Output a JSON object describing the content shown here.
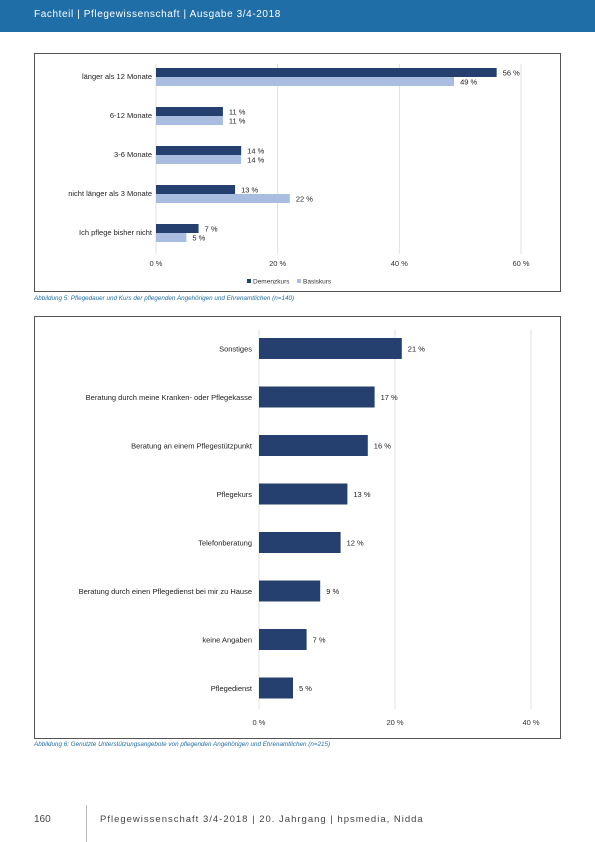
{
  "header": {
    "text": "Fachteil | Pflegewissenschaft | Ausgabe 3/4-2018"
  },
  "figure5": {
    "caption": "Abbildung 5: Pflegedauer und Kurs der pflegenden Angehörigen und Ehrenamtlichen (n=140)",
    "chart_data": {
      "type": "bar",
      "orientation": "horizontal",
      "categories": [
        "länger als 12 Monate",
        "6-12 Monate",
        "3-6 Monate",
        "nicht länger als 3 Monate",
        "Ich pflege bisher nicht"
      ],
      "series": [
        {
          "name": "Demenzkurs",
          "values": [
            56,
            11,
            14,
            13,
            7
          ],
          "labels": [
            "56 %",
            "11 %",
            "14 %",
            "13 %",
            "7 %"
          ],
          "color": "#25406e"
        },
        {
          "name": "Basiskurs",
          "values": [
            49,
            11,
            14,
            22,
            5
          ],
          "labels": [
            "49 %",
            "11 %",
            "14 %",
            "22 %",
            "5 %"
          ],
          "color": "#a9bde0"
        }
      ],
      "xlim": [
        0,
        60
      ],
      "xticks": [
        "0 %",
        "20 %",
        "40 %",
        "60 %"
      ],
      "grid": true,
      "legend_position": "bottom"
    }
  },
  "figure6": {
    "caption": "Abbildung 6: Genutzte Unterstützungsangebote von pflegenden Angehörigen und Ehrenamtlichen (n=215)",
    "chart_data": {
      "type": "bar",
      "orientation": "horizontal",
      "categories": [
        "Sonstiges",
        "Beratung durch meine Kranken- oder Pflegekasse",
        "Beratung an einem Pflegestützpunkt",
        "Pflegekurs",
        "Telefonberatung",
        "Beratung durch einen Pflegedienst bei mir zu Hause",
        "keine Angaben",
        "Pflegedienst"
      ],
      "values": [
        21,
        17,
        16,
        13,
        12,
        9,
        7,
        5
      ],
      "labels": [
        "21 %",
        "17 %",
        "16 %",
        "13 %",
        "12 %",
        "9 %",
        "7 %",
        "5 %"
      ],
      "color": "#25406e",
      "xlim": [
        0,
        40
      ],
      "xticks": [
        "0 %",
        "20 %",
        "40 %"
      ],
      "grid": true
    }
  },
  "footer": {
    "page_number": "160",
    "text": "Pflegewissenschaft 3/4-2018 | 20. Jahrgang | hpsmedia, Nidda"
  }
}
